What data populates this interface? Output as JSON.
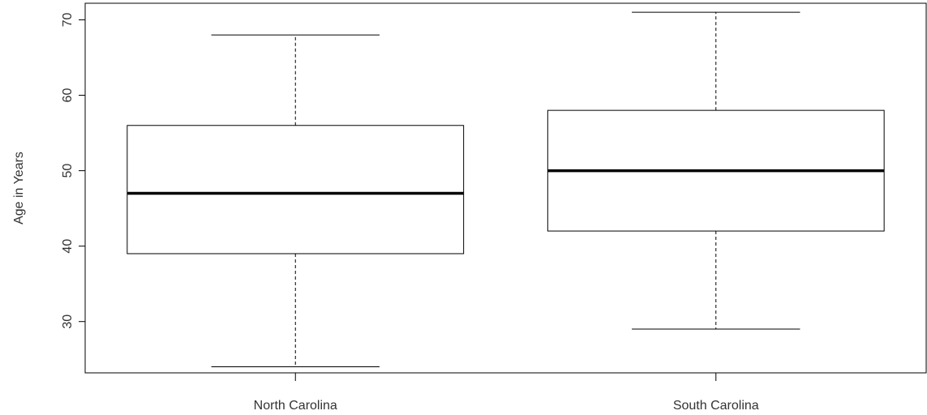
{
  "chart_data": {
    "type": "boxplot",
    "title": "",
    "xlabel": "",
    "ylabel": "Age in Years",
    "ylim": [
      23.2,
      72.2
    ],
    "yticks": [
      30,
      40,
      50,
      60,
      70
    ],
    "grid": false,
    "categories": [
      "North Carolina",
      "South Carolina"
    ],
    "boxes": [
      {
        "category": "North Carolina",
        "min": 24,
        "q1": 39,
        "median": 47,
        "q3": 56,
        "max": 68
      },
      {
        "category": "South Carolina",
        "min": 29,
        "q1": 42,
        "median": 50,
        "q3": 58,
        "max": 71
      }
    ]
  }
}
